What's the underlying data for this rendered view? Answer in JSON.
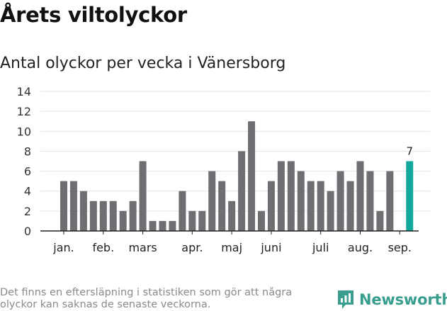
{
  "header": {
    "title": "Årets viltolyckor",
    "subtitle": "Antal olyckor per vecka i Vänersborg"
  },
  "footer": {
    "note_line1": "Det finns en eftersläpning i statistiken som gör att några",
    "note_line2": "olyckor kan saknas de senaste veckorna.",
    "brand": "Newsworthy"
  },
  "colors": {
    "bar": "#6e6e73",
    "highlight": "#13a89e",
    "grid": "#e3e3e3",
    "brand": "#3a9e8f"
  },
  "icons": {
    "brand_logo": "newsworthy-logo-icon"
  },
  "chart_data": {
    "type": "bar",
    "title": "Antal olyckor per vecka i Vänersborg",
    "xlabel": "",
    "ylabel": "",
    "ylim": [
      0,
      14
    ],
    "yticks": [
      0,
      2,
      4,
      6,
      8,
      10,
      12,
      14
    ],
    "grid": true,
    "x": [
      1,
      2,
      3,
      4,
      5,
      6,
      7,
      8,
      9,
      10,
      11,
      12,
      13,
      14,
      15,
      16,
      17,
      18,
      19,
      20,
      21,
      22,
      23,
      24,
      25,
      26,
      27,
      28,
      29,
      30,
      31,
      32,
      33,
      34,
      35,
      36
    ],
    "values": [
      5,
      5,
      4,
      3,
      3,
      3,
      2,
      3,
      7,
      1,
      1,
      1,
      4,
      2,
      2,
      6,
      5,
      3,
      8,
      11,
      2,
      5,
      7,
      7,
      6,
      5,
      5,
      4,
      6,
      5,
      7,
      6,
      2,
      6,
      0,
      7
    ],
    "highlight_index": 35,
    "highlight_label": "7",
    "month_labels": [
      {
        "label": "jan.",
        "week": 1
      },
      {
        "label": "feb.",
        "week": 5
      },
      {
        "label": "mars",
        "week": 9
      },
      {
        "label": "apr.",
        "week": 14
      },
      {
        "label": "maj",
        "week": 18
      },
      {
        "label": "juni",
        "week": 22
      },
      {
        "label": "juli",
        "week": 27
      },
      {
        "label": "aug.",
        "week": 31
      },
      {
        "label": "sep.",
        "week": 35
      }
    ]
  }
}
